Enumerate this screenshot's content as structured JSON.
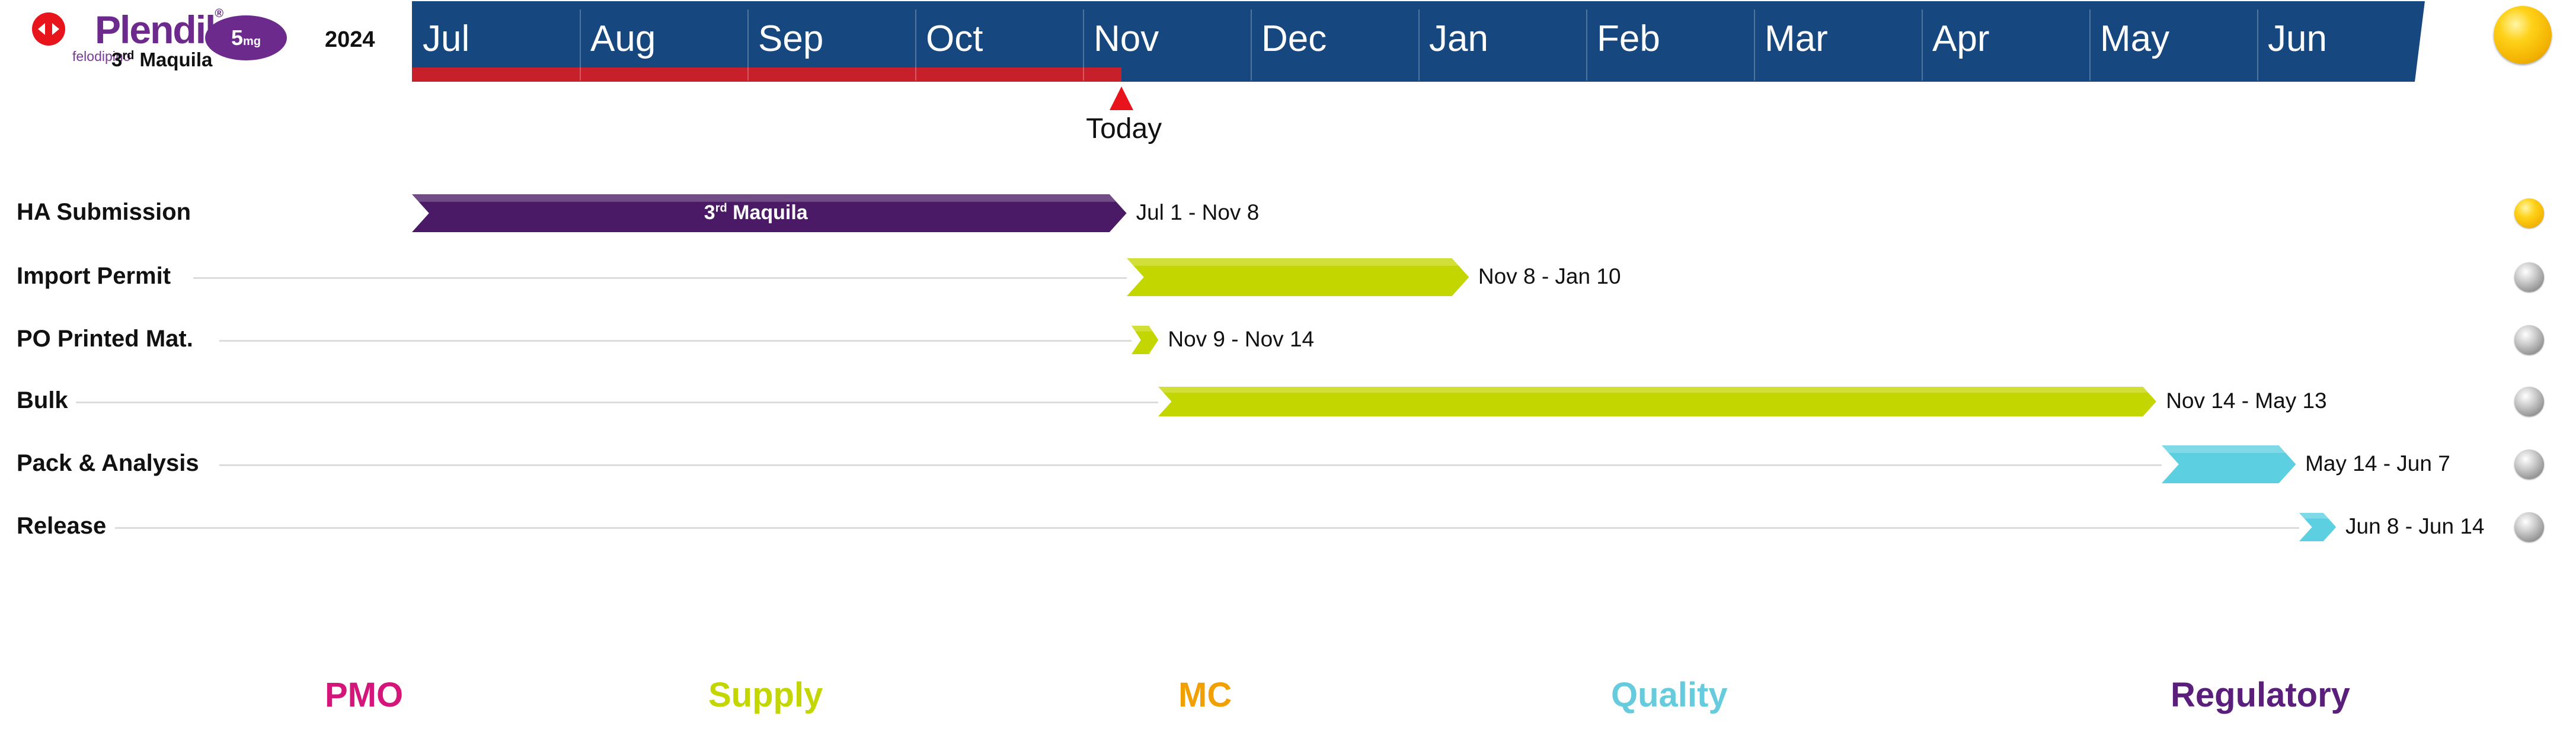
{
  "brand": {
    "name": "Plendil",
    "registered": "®",
    "dose_number": "5",
    "dose_unit": "mg",
    "generic": "felodipino",
    "subtitle_prefix": "3",
    "subtitle_sup": "rd",
    "subtitle_suffix": " Maquila",
    "colors": {
      "name": "#6b2a8c",
      "dose_bg": "#6b2a8c",
      "generic": "#7a3a96",
      "logo": "#e8141b"
    }
  },
  "year": "2024",
  "months": [
    "Jul",
    "Aug",
    "Sep",
    "Oct",
    "Nov",
    "Dec",
    "Jan",
    "Feb",
    "Mar",
    "Apr",
    "May",
    "Jun"
  ],
  "today": {
    "label": "Today",
    "month_index": 4.23
  },
  "band_colors": {
    "band": "#16477e",
    "progress": "#c8202b",
    "divider": "#3a6aa0"
  },
  "overall_status": "yellow",
  "chart_data": {
    "type": "gantt",
    "months": [
      "Jul",
      "Aug",
      "Sep",
      "Oct",
      "Nov",
      "Dec",
      "Jan",
      "Feb",
      "Mar",
      "Apr",
      "May",
      "Jun"
    ],
    "progress_until": "Nov 8",
    "tasks": [
      {
        "label": "HA Submission",
        "bar_text_prefix": "3",
        "bar_text_sup": "rd",
        "bar_text_suffix": " Maquila",
        "dates": "Jul 1 - Nov 8",
        "start": 0.0,
        "end": 4.26,
        "category": "Regulatory",
        "color": "#4a1a66",
        "status": "yellow"
      },
      {
        "label": "Import Permit",
        "dates": "Nov 8 - Jan 10",
        "start": 4.26,
        "end": 6.3,
        "category": "Supply",
        "color": "#c4d600",
        "status": "grey"
      },
      {
        "label": "PO Printed Mat.",
        "dates": "Nov 9 - Nov 14",
        "start": 4.29,
        "end": 4.45,
        "category": "Supply",
        "color": "#c4d600",
        "status": "grey"
      },
      {
        "label": "Bulk",
        "dates": "Nov 14 - May 13",
        "start": 4.45,
        "end": 10.4,
        "category": "Supply",
        "color": "#c4d600",
        "status": "grey"
      },
      {
        "label": "Pack & Analysis",
        "dates": "May 14 - Jun 7",
        "start": 10.43,
        "end": 11.23,
        "category": "Quality",
        "color": "#5ccfe0",
        "status": "grey"
      },
      {
        "label": "Release",
        "dates": "Jun 8 - Jun 14",
        "start": 11.25,
        "end": 11.47,
        "category": "Quality",
        "color": "#5ccfe0",
        "status": "grey"
      }
    ]
  },
  "legend": [
    {
      "label": "PMO",
      "color": "#d4157a"
    },
    {
      "label": "Supply",
      "color": "#c4d600"
    },
    {
      "label": "MC",
      "color": "#f2a000"
    },
    {
      "label": "Quality",
      "color": "#66ccdd"
    },
    {
      "label": "Regulatory",
      "color": "#5a1f7a"
    }
  ]
}
